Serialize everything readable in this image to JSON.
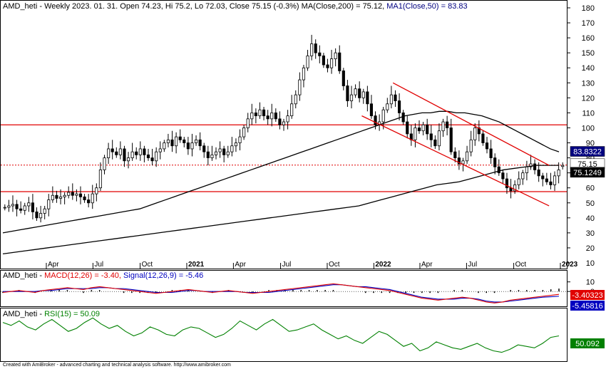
{
  "main_panel": {
    "ticker": "AMD_heti",
    "info_text": "Weekly 2023. 01. 31. Open 74.23, Hi 75.2, Lo 72.03, Close 75.15 (-0.3%)",
    "ma200_label": "MA(Close,200) = 75.12,",
    "ma50_label": "MA1(Close,50) = 83.83",
    "y_ticks": [
      10,
      20,
      30,
      40,
      50,
      60,
      70,
      80,
      90,
      100,
      110,
      120,
      130,
      140,
      150,
      160,
      170,
      180
    ],
    "x_ticks": [
      {
        "label": "Apr",
        "t": 0.085,
        "bold": false
      },
      {
        "label": "Jul",
        "t": 0.168,
        "bold": false
      },
      {
        "label": "Oct",
        "t": 0.252,
        "bold": false
      },
      {
        "label": "2021",
        "t": 0.335,
        "bold": true
      },
      {
        "label": "Apr",
        "t": 0.418,
        "bold": false
      },
      {
        "label": "Jul",
        "t": 0.502,
        "bold": false
      },
      {
        "label": "Oct",
        "t": 0.585,
        "bold": false
      },
      {
        "label": "2022",
        "t": 0.668,
        "bold": true
      },
      {
        "label": "Apr",
        "t": 0.75,
        "bold": false
      },
      {
        "label": "Jul",
        "t": 0.833,
        "bold": false
      },
      {
        "label": "Oct",
        "t": 0.917,
        "bold": false
      },
      {
        "label": "2023",
        "t": 1.0,
        "bold": true
      }
    ],
    "price_tags": [
      {
        "label": "83.8322",
        "value": 83.83,
        "bg": "#000080",
        "fg": "#ffffff"
      },
      {
        "label": "75.15",
        "value": 75.15,
        "bg": "#ffffff",
        "fg": "#000000"
      },
      {
        "label": "75.1249",
        "value": 75.12,
        "bg": "#000000",
        "fg": "#ffffff"
      }
    ]
  },
  "macd_panel": {
    "ticker": "AMD_heti",
    "macd_label": "MACD(12,26) = -3.40,",
    "signal_label": "Signal(12,26,9) = -5.46",
    "y_ticks": [
      10,
      0
    ],
    "tags": [
      {
        "label": "-3.40323",
        "bg": "#e00000",
        "fg": "#ffffff"
      },
      {
        "label": "-5.45816",
        "bg": "#0000c0",
        "fg": "#ffffff"
      }
    ]
  },
  "rsi_panel": {
    "ticker": "AMD_heti",
    "rsi_label": "RSI(15) = 50.09",
    "tag": {
      "label": "50.092",
      "bg": "#008000",
      "fg": "#ffffff"
    }
  },
  "footer": "Created with AmiBroker - advanced charting and technical analysis software. http://www.amibroker.com",
  "colors": {
    "candle_up": "#ffffff",
    "candle_down": "#000000",
    "ma50": "#000000",
    "ma200": "#000000",
    "channel": "#e00000",
    "horizontal_lines": "#e00000",
    "macd": "#e00000",
    "signal": "#0000c0",
    "rsi": "#008000"
  },
  "chart_data": [
    {
      "type": "candlestick",
      "title": "AMD_heti - Weekly 2023. 01. 31.",
      "ylim": [
        5,
        185
      ],
      "x_start": "2020-01",
      "x_end": "2023-01",
      "last_bar": {
        "open": 74.23,
        "high": 75.2,
        "low": 72.03,
        "close": 75.15
      },
      "weekly_closes": [
        47,
        48,
        49,
        46,
        45,
        48,
        50,
        44,
        40,
        43,
        46,
        52,
        55,
        53,
        54,
        55,
        57,
        55,
        56,
        54,
        52,
        50,
        56,
        60,
        72,
        80,
        86,
        84,
        82,
        86,
        78,
        80,
        84,
        82,
        86,
        82,
        80,
        78,
        84,
        86,
        90,
        92,
        88,
        94,
        92,
        90,
        86,
        90,
        92,
        88,
        84,
        80,
        82,
        84,
        86,
        82,
        84,
        88,
        90,
        94,
        100,
        106,
        110,
        108,
        112,
        108,
        106,
        110,
        106,
        102,
        104,
        108,
        116,
        122,
        132,
        140,
        148,
        156,
        150,
        148,
        142,
        140,
        146,
        150,
        138,
        128,
        118,
        122,
        126,
        120,
        124,
        116,
        108,
        102,
        104,
        112,
        116,
        122,
        118,
        110,
        104,
        96,
        92,
        100,
        98,
        102,
        96,
        92,
        88,
        98,
        104,
        100,
        84,
        80,
        76,
        78,
        84,
        92,
        100,
        96,
        90,
        86,
        80,
        74,
        70,
        66,
        60,
        58,
        62,
        66,
        70,
        74,
        76,
        72,
        68,
        66,
        64,
        62,
        68,
        72,
        75
      ],
      "ma50": [
        30,
        31,
        32,
        33,
        34,
        35,
        36,
        37,
        38,
        39,
        40,
        41,
        42,
        43,
        44,
        45,
        46,
        48,
        50,
        52,
        54,
        56,
        58,
        60,
        62,
        64,
        66,
        68,
        70,
        72,
        74,
        76,
        78,
        80,
        82,
        84,
        86,
        88,
        90,
        92,
        94,
        96,
        98,
        100,
        102,
        104,
        106,
        108,
        109,
        110,
        110,
        111,
        111,
        110,
        110,
        109,
        108,
        106,
        104,
        101,
        98,
        95,
        92,
        89,
        86,
        84
      ],
      "ma200": [
        16,
        17,
        18,
        19,
        20,
        21,
        22,
        23,
        24,
        25,
        26,
        27,
        28,
        29,
        30,
        31,
        32,
        33,
        34,
        35,
        36,
        37,
        38,
        39,
        40,
        41,
        42,
        43,
        44,
        45,
        46,
        47,
        48,
        50,
        52,
        54,
        56,
        58,
        60,
        62,
        63,
        64,
        66,
        68,
        70,
        72,
        73,
        74,
        75,
        75,
        75
      ],
      "horizontal_lines": [
        102,
        57.5
      ],
      "dotted_line": 75.15,
      "channel_upper": [
        [
          "2022-02",
          130
        ],
        [
          "2022-12",
          75
        ]
      ],
      "channel_lower": [
        [
          "2021-12",
          108
        ],
        [
          "2022-12",
          48
        ]
      ]
    },
    {
      "type": "line",
      "title": "MACD(12,26)",
      "series": [
        {
          "name": "MACD(12,26)",
          "values": [
            -1,
            0,
            1,
            0,
            -1,
            1,
            2,
            3,
            4,
            3,
            2,
            4,
            5,
            4,
            3,
            2,
            1,
            0,
            -1,
            -2,
            -1,
            0,
            1,
            2,
            1,
            0,
            -1,
            0,
            1,
            0,
            -1,
            -2,
            -1,
            0,
            1,
            2,
            3,
            4,
            5,
            6,
            7,
            8,
            7,
            6,
            5,
            4,
            3,
            2,
            1,
            -1,
            -3,
            -5,
            -7,
            -8,
            -9,
            -8,
            -7,
            -6,
            -7,
            -9,
            -11,
            -12,
            -11,
            -9,
            -8,
            -7,
            -6,
            -5,
            -4,
            -3
          ]
        },
        {
          "name": "Signal(12,26,9)",
          "values": [
            0,
            0,
            0,
            0,
            0,
            1,
            1,
            2,
            3,
            3,
            3,
            3,
            4,
            4,
            3,
            3,
            2,
            1,
            0,
            -1,
            -1,
            -1,
            0,
            1,
            1,
            0,
            0,
            0,
            0,
            0,
            -1,
            -1,
            -1,
            -1,
            0,
            1,
            2,
            3,
            4,
            5,
            6,
            7,
            7,
            6,
            5,
            5,
            4,
            3,
            2,
            0,
            -2,
            -4,
            -6,
            -7,
            -8,
            -8,
            -8,
            -7,
            -7,
            -8,
            -10,
            -11,
            -11,
            -10,
            -9,
            -8,
            -7,
            -6,
            -5.5,
            -5
          ]
        }
      ]
    },
    {
      "type": "line",
      "title": "RSI(15)",
      "series": [
        {
          "name": "RSI(15)",
          "values": [
            68,
            64,
            70,
            62,
            58,
            66,
            72,
            64,
            56,
            60,
            68,
            74,
            66,
            60,
            64,
            56,
            50,
            54,
            62,
            58,
            52,
            50,
            58,
            62,
            60,
            54,
            48,
            52,
            60,
            70,
            64,
            58,
            66,
            72,
            64,
            56,
            58,
            62,
            66,
            58,
            52,
            46,
            50,
            44,
            40,
            48,
            56,
            52,
            44,
            36,
            40,
            30,
            34,
            42,
            38,
            34,
            32,
            36,
            40,
            34,
            30,
            28,
            32,
            38,
            36,
            34,
            40,
            48,
            50
          ]
        }
      ]
    }
  ]
}
